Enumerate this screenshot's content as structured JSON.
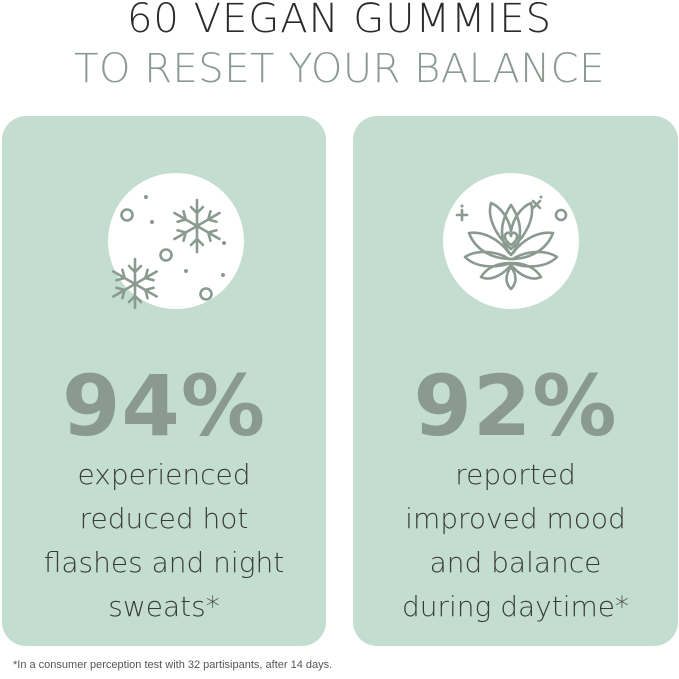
{
  "headline": {
    "line1": "60 VEGAN GUMMIES",
    "line2": "TO RESET YOUR BALANCE"
  },
  "colors": {
    "card_background": "#c3ddd0",
    "stat_color": "#8a9a91",
    "icon_color": "#8a9a91"
  },
  "cards": [
    {
      "icon": "snowflake-icon",
      "stat": "94%",
      "description_lines": [
        "experienced",
        "reduced hot",
        "flashes and night",
        "sweats*"
      ]
    },
    {
      "icon": "lotus-icon",
      "stat": "92%",
      "description_lines": [
        "reported",
        "improved mood",
        "and balance",
        "during daytime*"
      ]
    }
  ],
  "footnote": "*In a consumer perception test with 32 partisipants, after 14 days."
}
